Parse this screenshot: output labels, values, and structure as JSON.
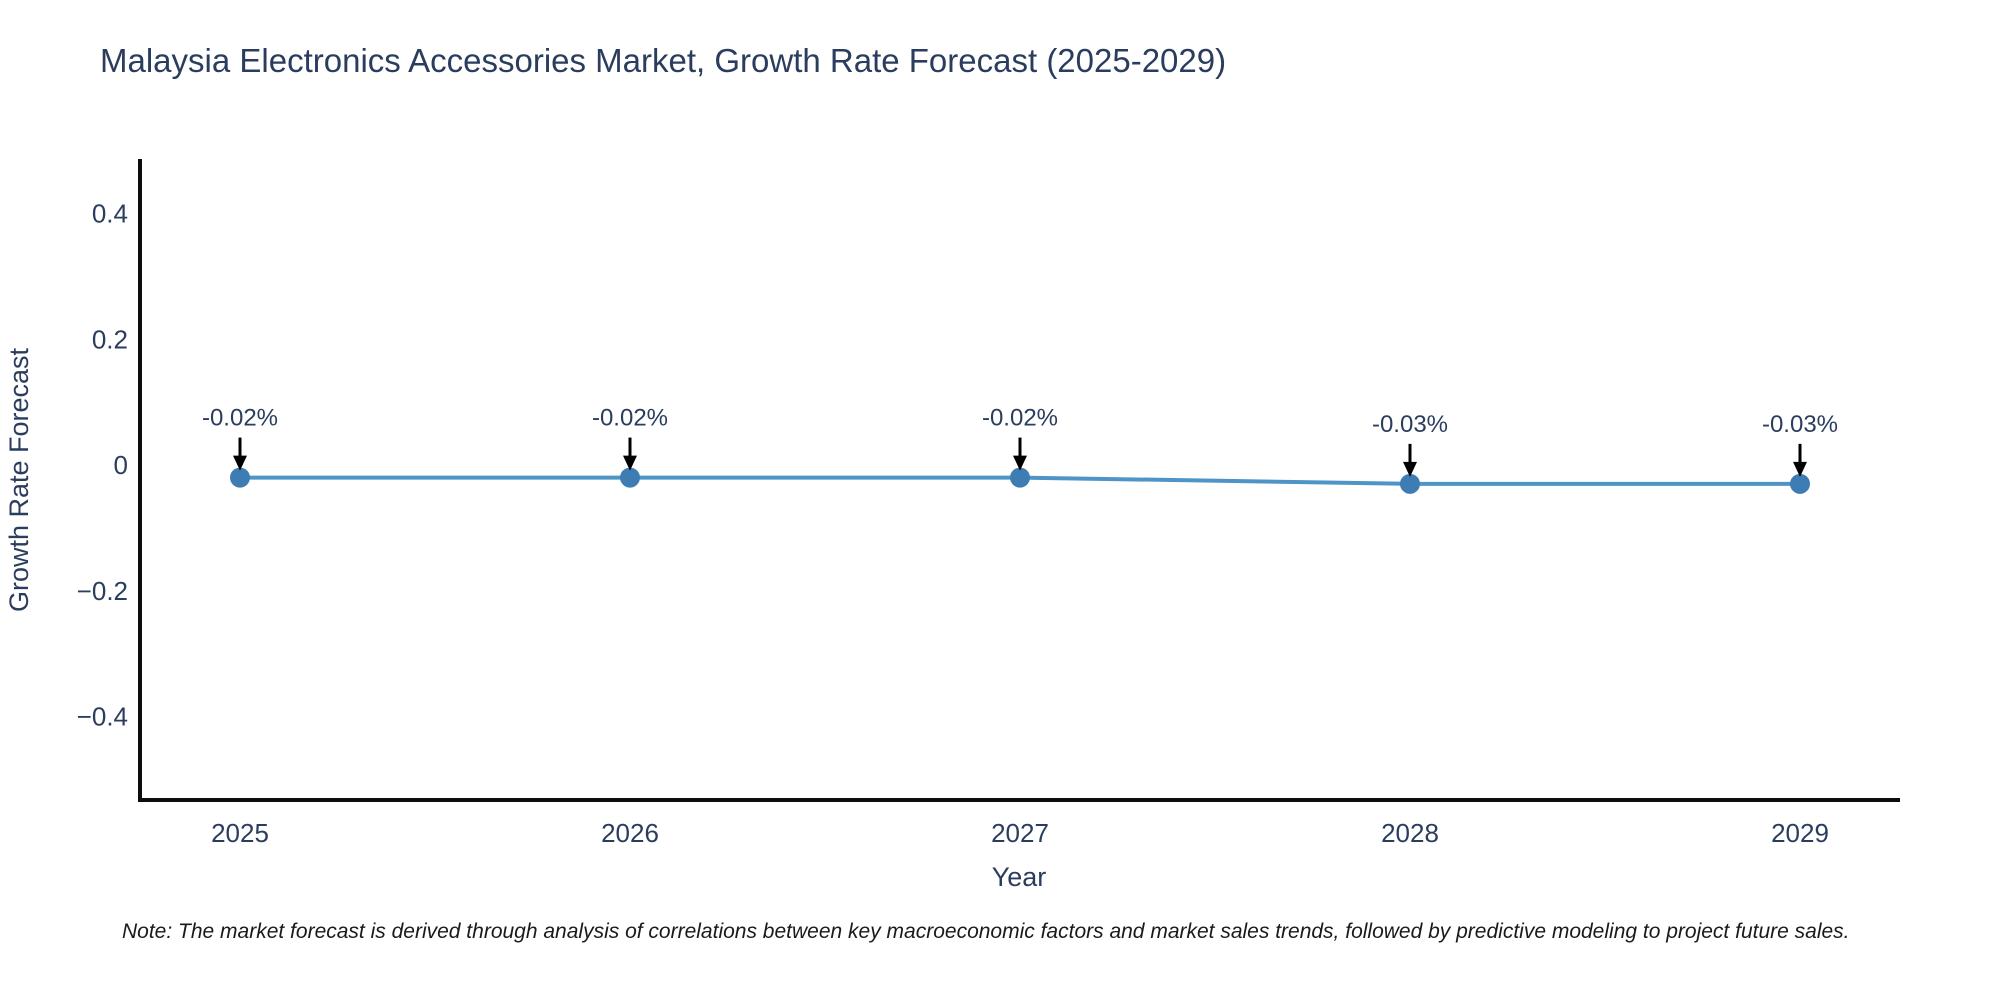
{
  "title": "Malaysia Electronics Accessories Market, Growth Rate Forecast (2025-2029)",
  "note": "Note: The market forecast is derived through analysis of correlations between key macroeconomic factors and market sales trends, followed by predictive modeling to project future sales.",
  "chart_data": {
    "type": "line",
    "title": "Malaysia Electronics Accessories Market, Growth Rate Forecast (2025-2029)",
    "xlabel": "Year",
    "ylabel": "Growth Rate Forecast",
    "x": [
      2025,
      2026,
      2027,
      2028,
      2029
    ],
    "xtick_labels": [
      "2025",
      "2026",
      "2027",
      "2028",
      "2029"
    ],
    "series": [
      {
        "name": "Growth Rate Forecast",
        "values": [
          -0.02,
          -0.02,
          -0.02,
          -0.03,
          -0.03
        ]
      }
    ],
    "point_labels": [
      "-0.02%",
      "-0.02%",
      "-0.02%",
      "-0.03%",
      "-0.03%"
    ],
    "yticks": [
      0.4,
      0.2,
      0,
      -0.2,
      -0.4
    ],
    "ytick_labels": [
      "0.4",
      "0.2",
      "0",
      "−0.2",
      "−0.4"
    ],
    "ylim": [
      -0.53,
      0.49
    ],
    "grid": false,
    "legend": "none",
    "colors": {
      "line": "#4f94c6",
      "marker": "#3e7db4",
      "axis": "#0d0d0d",
      "text": "#2b3d5e",
      "arrow": "#000000",
      "note_text": "#1a1a1a"
    }
  }
}
